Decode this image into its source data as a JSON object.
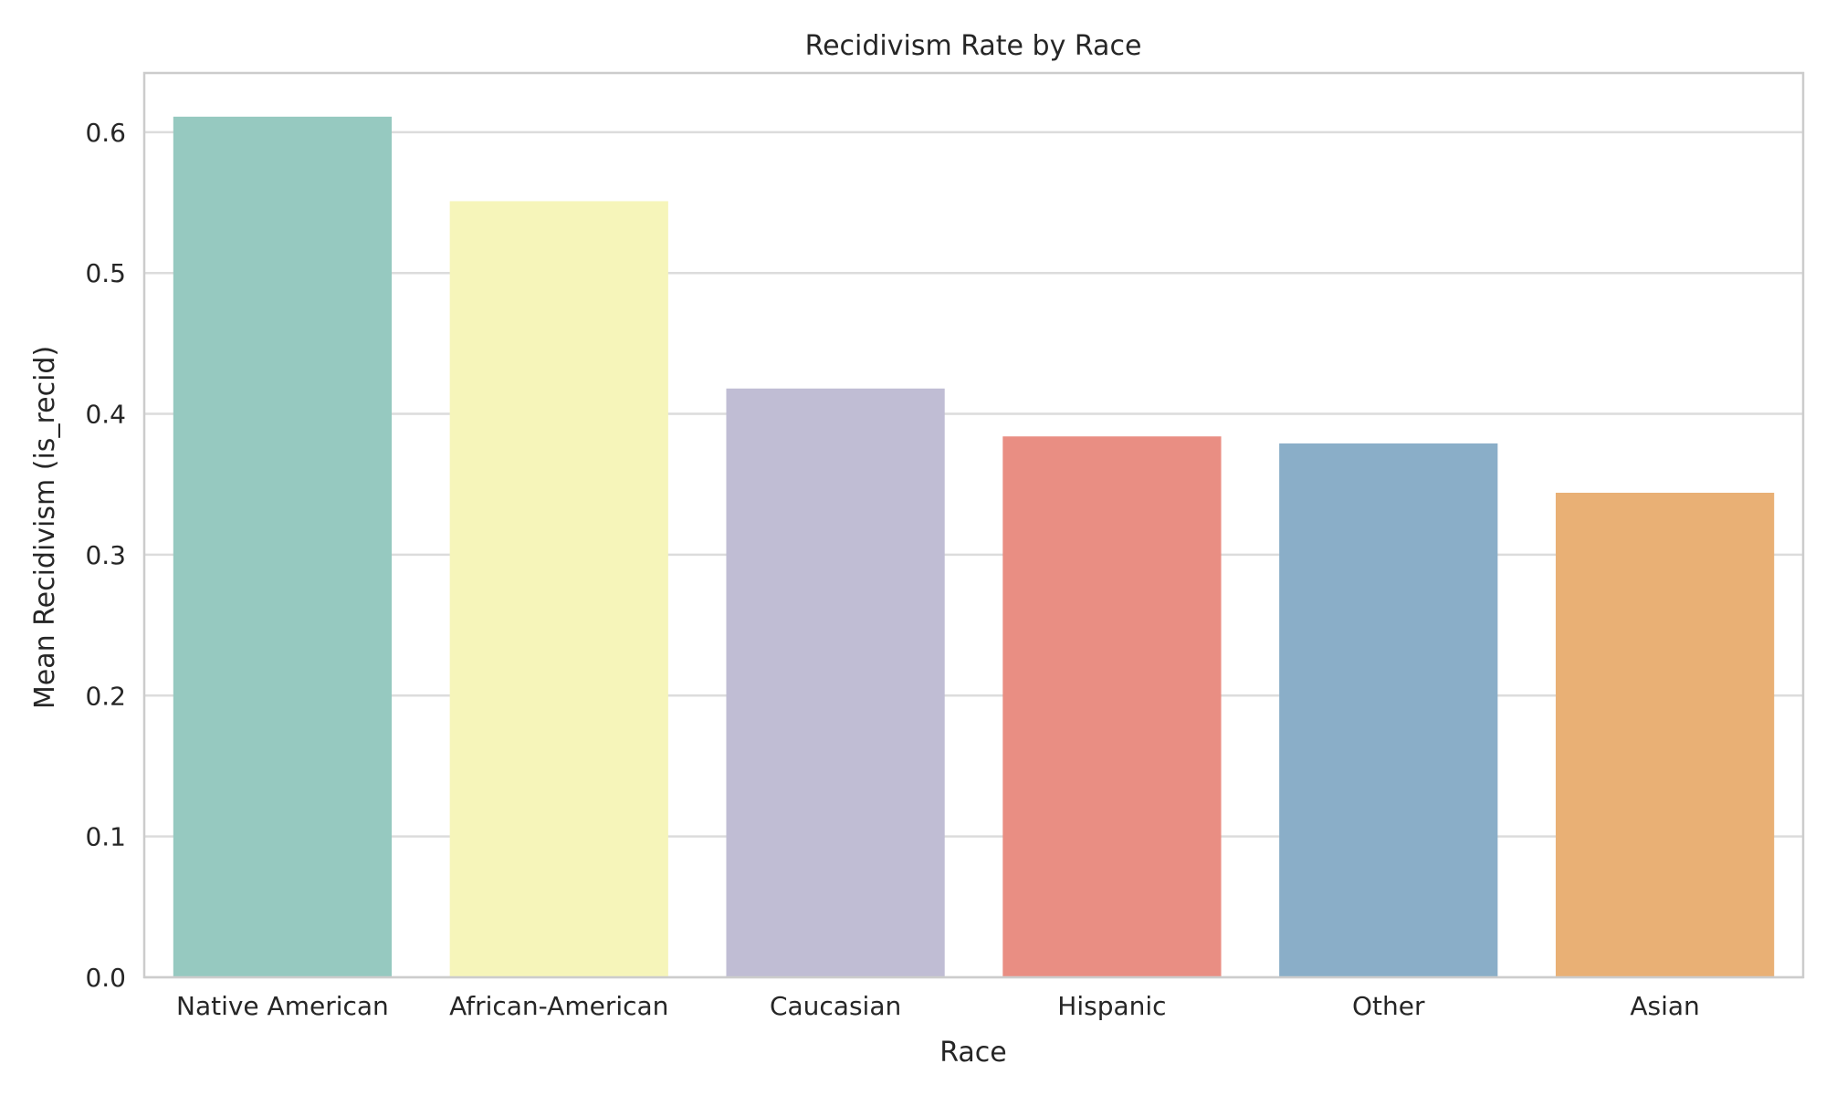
{
  "chart_data": {
    "type": "bar",
    "title": "Recidivism Rate by Race",
    "xlabel": "Race",
    "ylabel": "Mean Recidivism (is_recid)",
    "categories": [
      "Native American",
      "African-American",
      "Caucasian",
      "Hispanic",
      "Other",
      "Asian"
    ],
    "values": [
      0.611,
      0.551,
      0.418,
      0.384,
      0.379,
      0.344
    ],
    "colors": [
      "#96c9c0",
      "#f6f5ba",
      "#c0bdd4",
      "#e98e83",
      "#8aaec8",
      "#e9b075"
    ],
    "ylim": [
      0,
      0.642
    ],
    "yticks": [
      0.0,
      0.1,
      0.2,
      0.3,
      0.4,
      0.5,
      0.6
    ],
    "ytick_labels": [
      "0.0",
      "0.1",
      "0.2",
      "0.3",
      "0.4",
      "0.5",
      "0.6"
    ],
    "grid": "horizontal",
    "legend": "none"
  }
}
